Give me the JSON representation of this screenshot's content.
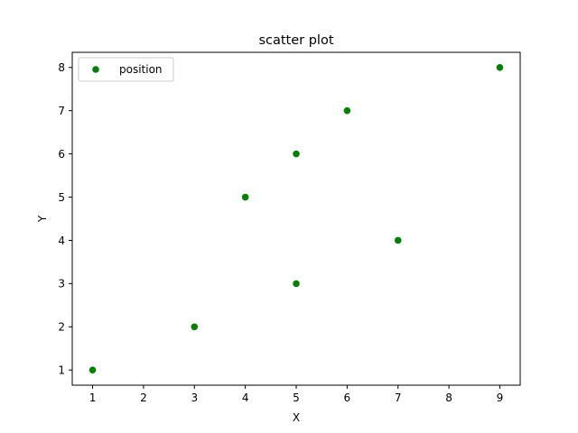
{
  "chart_data": {
    "type": "scatter",
    "title": "scatter plot",
    "xlabel": "X",
    "ylabel": "Y",
    "xlim": [
      0.6,
      9.4
    ],
    "ylim": [
      0.65,
      8.35
    ],
    "xticks": [
      1,
      2,
      3,
      4,
      5,
      6,
      7,
      8,
      9
    ],
    "yticks": [
      1,
      2,
      3,
      4,
      5,
      6,
      7,
      8
    ],
    "xtick_labels": [
      "1",
      "2",
      "3",
      "4",
      "5",
      "6",
      "7",
      "8",
      "9"
    ],
    "ytick_labels": [
      "1",
      "2",
      "3",
      "4",
      "5",
      "6",
      "7",
      "8"
    ],
    "grid": false,
    "legend_position": "upper-left",
    "series": [
      {
        "name": "position",
        "color": "#008000",
        "x": [
          1,
          3,
          4,
          5,
          5,
          6,
          7,
          9
        ],
        "y": [
          1,
          2,
          5,
          6,
          3,
          7,
          4,
          8
        ]
      }
    ]
  }
}
